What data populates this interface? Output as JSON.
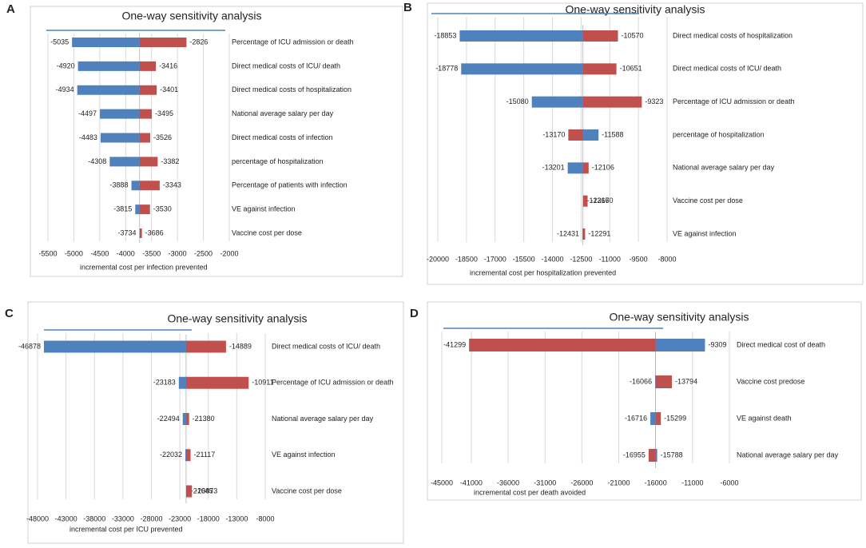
{
  "chart_data": [
    {
      "type": "tornado",
      "panel": "A",
      "title": "One-way sensitivity analysis",
      "xlabel": "incremental cost per infection prevented",
      "categories": [
        "Percentage of ICU admission or death",
        "Direct medical costs of ICU/ death",
        "Direct medical costs of hospitalization",
        "National average salary per day",
        "Direct medical costs of infection",
        "percentage of hospitalization",
        "Percentage of patients with infection",
        "VE against infection",
        "Vaccine cost per dose"
      ],
      "base_value": -3730,
      "series": [
        {
          "color": "#4f81bd",
          "values": [
            -5035,
            -4920,
            -4934,
            -4497,
            -4483,
            -4308,
            -3888,
            -3815,
            -3734
          ]
        },
        {
          "color": "#c0504d",
          "values": [
            -2826,
            -3416,
            -3401,
            -3495,
            -3526,
            -3382,
            -3343,
            -3530,
            -3686
          ]
        }
      ],
      "xlim": [
        -5500,
        -2000
      ],
      "xticks": [
        -5500,
        -5000,
        -4500,
        -4000,
        -3500,
        -3000,
        -2500,
        -2000
      ],
      "grid": true
    },
    {
      "type": "tornado",
      "panel": "B",
      "title": "One-way sensitivity analysis",
      "xlabel": "incremental cost per hospitalization prevented",
      "categories": [
        "Direct medical costs of hospitalization",
        "Direct medical costs of ICU/ death",
        "Percentage of ICU admission or death",
        "percentage of hospitalization",
        "National average salary per day",
        "Vaccine cost per dose",
        "VE against infection"
      ],
      "base_value": -12400,
      "series": [
        {
          "color": "#4f81bd",
          "values": [
            -18853,
            -18778,
            -15080,
            -11588,
            -13201,
            -12367,
            -12431
          ]
        },
        {
          "color": "#c0504d",
          "values": [
            -10570,
            -10651,
            -9323,
            -13170,
            -12106,
            -12160,
            -12291
          ]
        }
      ],
      "xlim": [
        -20000,
        -8000
      ],
      "xticks": [
        -20000,
        -18500,
        -17000,
        -15500,
        -14000,
        -12500,
        -11000,
        -9500,
        -8000
      ],
      "grid": true
    },
    {
      "type": "tornado",
      "panel": "C",
      "title": "One-way sensitivity analysis",
      "xlabel": "incremental cost per ICU prevented",
      "categories": [
        "Direct medical costs of ICU/ death",
        "Percentage of ICU admission or death",
        "National average salary per day",
        "VE against infection",
        "Vaccine cost per dose"
      ],
      "base_value": -21900,
      "series": [
        {
          "color": "#4f81bd",
          "values": [
            -46878,
            -23183,
            -22494,
            -22032,
            -21645
          ]
        },
        {
          "color": "#c0504d",
          "values": [
            -14889,
            -10911,
            -21380,
            -21117,
            -20873
          ]
        }
      ],
      "xlim": [
        -48000,
        -8000
      ],
      "xticks": [
        -48000,
        -43000,
        -38000,
        -33000,
        -28000,
        -23000,
        -18000,
        -13000,
        -8000
      ],
      "grid": true
    },
    {
      "type": "tornado",
      "panel": "D",
      "title": "One-way sensitivity analysis",
      "xlabel": "incremental cost per death avoided",
      "categories": [
        "Direct medical cost of death",
        "Vaccine cost predose",
        "VE against death",
        "National average salary per day"
      ],
      "base_value": -16000,
      "series": [
        {
          "color": "#4f81bd",
          "values": [
            -9309,
            -16066,
            -16716,
            -15788
          ]
        },
        {
          "color": "#c0504d",
          "values": [
            -41299,
            -13794,
            -15299,
            -16955
          ]
        }
      ],
      "xlim": [
        -45000,
        -6000
      ],
      "xticks": [
        -45000,
        -41000,
        -36000,
        -31000,
        -26000,
        -21000,
        -16000,
        -11000,
        -6000
      ],
      "grid": true
    }
  ]
}
